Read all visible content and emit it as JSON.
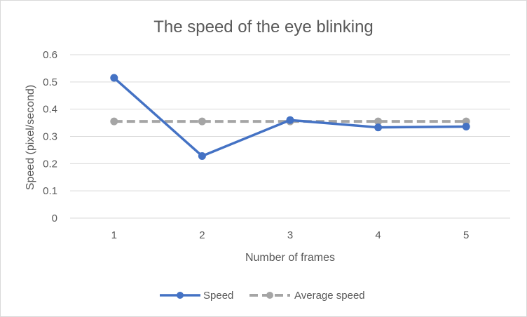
{
  "chart_data": {
    "type": "line",
    "title": "The speed of the eye blinking",
    "xlabel": "Number of frames",
    "ylabel": "Speed (pixel/second)",
    "categories": [
      "1",
      "2",
      "3",
      "4",
      "5"
    ],
    "ylim": [
      0,
      0.6
    ],
    "yticks": [
      "0",
      "0.1",
      "0.2",
      "0.3",
      "0.4",
      "0.5",
      "0.6"
    ],
    "grid": true,
    "legend_position": "bottom",
    "series": [
      {
        "name": "Speed",
        "values": [
          0.515,
          0.228,
          0.36,
          0.333,
          0.336
        ],
        "color": "#4472c4",
        "style": "solid"
      },
      {
        "name": "Average speed",
        "values": [
          0.355,
          0.355,
          0.355,
          0.355,
          0.355
        ],
        "color": "#a5a5a5",
        "style": "dashed"
      }
    ]
  }
}
